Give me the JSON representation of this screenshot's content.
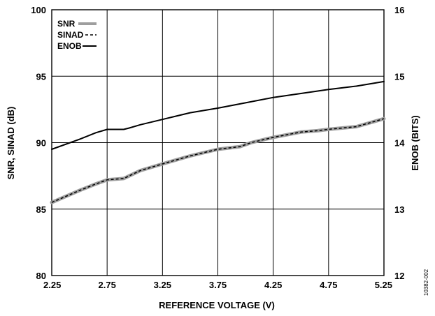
{
  "chart_data": {
    "type": "line",
    "xlabel": "REFERENCE VOLTAGE (V)",
    "ylabel": "SNR, SINAD (dB)",
    "y2label": "ENOB (BITS)",
    "figure_id": "10382-002",
    "xlim": [
      2.25,
      5.25
    ],
    "ylim": [
      80,
      100
    ],
    "y2lim": [
      12,
      16
    ],
    "xticks": [
      "2.25",
      "2.75",
      "3.25",
      "3.75",
      "4.25",
      "4.75",
      "5.25"
    ],
    "yticks": [
      "80",
      "85",
      "90",
      "95",
      "100"
    ],
    "y2ticks": [
      "12",
      "13",
      "14",
      "15",
      "16"
    ],
    "grid": true,
    "legend_position": "top-left",
    "series": [
      {
        "name": "SNR",
        "axis": "left",
        "color": "#9e9e9e",
        "style": "thick-gray",
        "x": [
          2.25,
          2.5,
          2.65,
          2.75,
          2.9,
          2.95,
          3.05,
          3.25,
          3.5,
          3.75,
          3.95,
          4.05,
          4.25,
          4.5,
          4.65,
          4.75,
          5.0,
          5.25
        ],
        "y": [
          85.5,
          86.4,
          86.9,
          87.2,
          87.3,
          87.5,
          87.9,
          88.4,
          89.0,
          89.5,
          89.7,
          90.0,
          90.4,
          90.8,
          90.9,
          91.0,
          91.2,
          91.8
        ]
      },
      {
        "name": "SINAD",
        "axis": "left",
        "color": "#000000",
        "style": "dashed",
        "x": [
          2.25,
          2.5,
          2.65,
          2.75,
          2.9,
          2.95,
          3.05,
          3.25,
          3.5,
          3.75,
          3.95,
          4.05,
          4.25,
          4.5,
          4.65,
          4.75,
          5.0,
          5.25
        ],
        "y": [
          85.5,
          86.4,
          86.9,
          87.2,
          87.3,
          87.5,
          87.9,
          88.4,
          89.0,
          89.5,
          89.7,
          90.0,
          90.4,
          90.8,
          90.9,
          91.0,
          91.2,
          91.8
        ]
      },
      {
        "name": "ENOB",
        "axis": "right",
        "color": "#000000",
        "style": "solid",
        "x": [
          2.25,
          2.5,
          2.65,
          2.75,
          2.9,
          2.95,
          3.05,
          3.25,
          3.5,
          3.75,
          4.0,
          4.25,
          4.5,
          4.75,
          5.0,
          5.25
        ],
        "y": [
          13.9,
          14.05,
          14.15,
          14.2,
          14.2,
          14.22,
          14.27,
          14.35,
          14.45,
          14.52,
          14.6,
          14.68,
          14.74,
          14.8,
          14.85,
          14.92
        ]
      }
    ]
  }
}
